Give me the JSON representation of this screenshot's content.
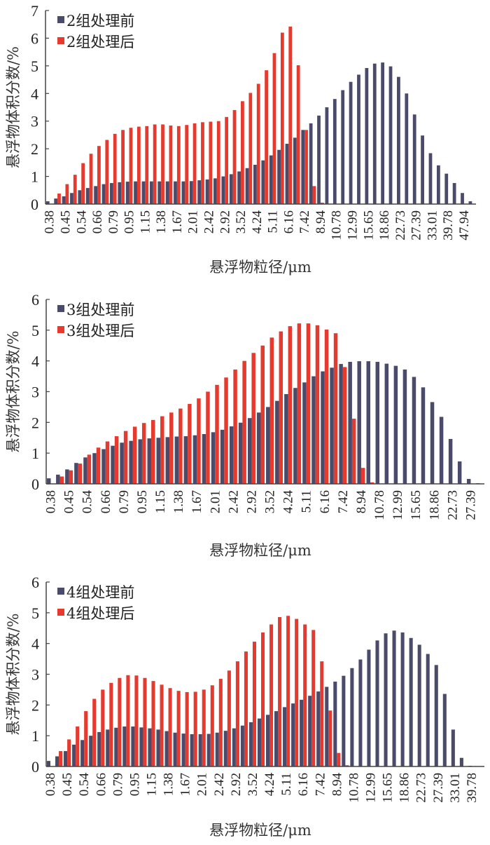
{
  "colors": {
    "before": "#4a4a6a",
    "after": "#e63a2e",
    "axis": "#444444"
  },
  "chart_data": [
    {
      "type": "bar",
      "title": "",
      "xlabel": "悬浮物粒径/μm",
      "ylabel": "悬浮物体积分数/%",
      "ylim": [
        0,
        7
      ],
      "yticks": [
        "0",
        "1",
        "2",
        "3",
        "4",
        "5",
        "6",
        "7"
      ],
      "grid": false,
      "legend_position": "top-left",
      "xtick_labels": [
        "0.38",
        "0.45",
        "0.54",
        "0.66",
        "0.79",
        "0.95",
        "1.15",
        "1.38",
        "1.67",
        "2.01",
        "2.42",
        "2.92",
        "3.52",
        "4.24",
        "5.11",
        "6.16",
        "7.42",
        "8.94",
        "10.78",
        "12.99",
        "15.65",
        "18.86",
        "22.73",
        "27.39",
        "33.01",
        "39.78",
        "47.94"
      ],
      "bins": 54,
      "series": [
        {
          "name": "2组处理前",
          "values": [
            0.1,
            0.2,
            0.28,
            0.4,
            0.5,
            0.58,
            0.65,
            0.72,
            0.76,
            0.79,
            0.81,
            0.82,
            0.82,
            0.82,
            0.82,
            0.82,
            0.82,
            0.82,
            0.83,
            0.86,
            0.89,
            0.93,
            1.0,
            1.08,
            1.18,
            1.3,
            1.42,
            1.58,
            1.76,
            1.96,
            2.18,
            2.4,
            2.68,
            2.92,
            3.2,
            3.5,
            3.8,
            4.12,
            4.42,
            4.68,
            4.92,
            5.08,
            5.12,
            4.98,
            4.6,
            4.0,
            3.24,
            2.48,
            1.84,
            1.4,
            1.1,
            0.76,
            0.4,
            0.1
          ]
        },
        {
          "name": "2组处理后",
          "values": [
            0.0,
            0.38,
            0.72,
            1.06,
            1.48,
            1.82,
            2.1,
            2.32,
            2.54,
            2.68,
            2.76,
            2.8,
            2.82,
            2.88,
            2.88,
            2.84,
            2.82,
            2.86,
            2.92,
            2.96,
            2.98,
            3.0,
            3.15,
            3.4,
            3.72,
            4.02,
            4.35,
            4.84,
            5.46,
            6.2,
            6.42,
            5.02,
            2.68,
            0.65,
            0.05,
            0,
            0,
            0,
            0,
            0,
            0,
            0,
            0,
            0,
            0,
            0,
            0,
            0,
            0,
            0,
            0,
            0,
            0,
            0
          ]
        }
      ]
    },
    {
      "type": "bar",
      "title": "",
      "xlabel": "悬浮物粒径/μm",
      "ylabel": "悬浮物体积分数/%",
      "ylim": [
        0,
        6
      ],
      "yticks": [
        "0",
        "1",
        "2",
        "3",
        "4",
        "5",
        "6"
      ],
      "grid": false,
      "legend_position": "top-left",
      "xtick_labels": [
        "0.38",
        "0.45",
        "0.54",
        "0.66",
        "0.79",
        "0.95",
        "1.15",
        "1.38",
        "1.67",
        "2.01",
        "2.42",
        "2.92",
        "3.52",
        "4.24",
        "5.11",
        "6.16",
        "7.42",
        "8.94",
        "10.78",
        "12.99",
        "15.65",
        "18.86",
        "22.73",
        "27.39"
      ],
      "bins": 48,
      "series": [
        {
          "name": "3组处理前",
          "values": [
            0.18,
            0.3,
            0.47,
            0.68,
            0.86,
            1.0,
            1.13,
            1.24,
            1.34,
            1.4,
            1.45,
            1.48,
            1.5,
            1.52,
            1.54,
            1.55,
            1.58,
            1.62,
            1.68,
            1.76,
            1.87,
            1.99,
            2.14,
            2.32,
            2.5,
            2.7,
            2.92,
            3.12,
            3.3,
            3.5,
            3.66,
            3.78,
            3.9,
            3.97,
            3.99,
            3.99,
            3.97,
            3.91,
            3.84,
            3.72,
            3.48,
            3.14,
            2.66,
            2.18,
            1.46,
            0.73,
            0.16,
            0.02
          ]
        },
        {
          "name": "3组处理后",
          "values": [
            0.0,
            0.24,
            0.44,
            0.66,
            0.95,
            1.18,
            1.38,
            1.55,
            1.72,
            1.86,
            1.98,
            2.08,
            2.2,
            2.32,
            2.45,
            2.6,
            2.78,
            3.0,
            3.22,
            3.46,
            3.72,
            4.0,
            4.26,
            4.5,
            4.76,
            4.96,
            5.13,
            5.22,
            5.22,
            5.16,
            5.02,
            4.9,
            3.8,
            2.12,
            0.52,
            0.05,
            0,
            0,
            0,
            0,
            0,
            0,
            0,
            0,
            0,
            0,
            0,
            0
          ]
        }
      ]
    },
    {
      "type": "bar",
      "title": "",
      "xlabel": "悬浮物粒径/μm",
      "ylabel": "悬浮物体积分数/%",
      "ylim": [
        0,
        6
      ],
      "yticks": [
        "0",
        "1",
        "2",
        "3",
        "4",
        "5",
        "6"
      ],
      "grid": false,
      "legend_position": "top-left",
      "xtick_labels": [
        "0.38",
        "0.45",
        "0.54",
        "0.66",
        "0.79",
        "0.95",
        "1.15",
        "1.38",
        "1.67",
        "2.01",
        "2.42",
        "2.92",
        "3.52",
        "4.24",
        "5.11",
        "6.16",
        "7.42",
        "8.94",
        "10.78",
        "12.99",
        "15.65",
        "18.86",
        "22.73",
        "27.39",
        "33.01",
        "39.78"
      ],
      "bins": 52,
      "series": [
        {
          "name": "4组处理前",
          "values": [
            0.18,
            0.33,
            0.5,
            0.71,
            0.86,
            1.0,
            1.12,
            1.2,
            1.26,
            1.3,
            1.3,
            1.27,
            1.24,
            1.2,
            1.15,
            1.1,
            1.07,
            1.05,
            1.05,
            1.06,
            1.1,
            1.16,
            1.24,
            1.33,
            1.44,
            1.56,
            1.68,
            1.8,
            1.93,
            2.05,
            2.17,
            2.3,
            2.44,
            2.59,
            2.76,
            2.95,
            3.2,
            3.48,
            3.8,
            4.1,
            4.33,
            4.42,
            4.36,
            4.18,
            3.96,
            3.66,
            3.3,
            2.36,
            1.2,
            0.28,
            0.02,
            0
          ]
        },
        {
          "name": "4组处理后",
          "values": [
            0.0,
            0.5,
            0.88,
            1.3,
            1.8,
            2.2,
            2.5,
            2.72,
            2.88,
            2.97,
            2.96,
            2.88,
            2.78,
            2.66,
            2.55,
            2.46,
            2.42,
            2.43,
            2.5,
            2.64,
            2.85,
            3.12,
            3.42,
            3.74,
            4.06,
            4.36,
            4.62,
            4.86,
            4.9,
            4.8,
            4.62,
            4.44,
            3.42,
            1.82,
            0.44,
            0.04,
            0,
            0,
            0,
            0,
            0,
            0,
            0,
            0,
            0,
            0,
            0,
            0,
            0,
            0,
            0,
            0
          ]
        }
      ]
    }
  ]
}
